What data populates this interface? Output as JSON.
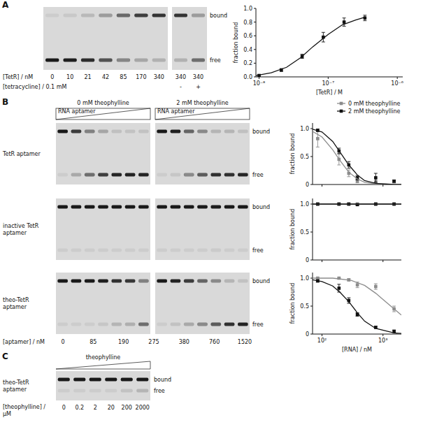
{
  "panels": {
    "letters": [
      "A",
      "B",
      "C"
    ]
  },
  "gels": {
    "A": {
      "bound_label": "bound",
      "free_label": "free",
      "lanes_label": "[TetR] / nM",
      "lanes": [
        "0",
        "10",
        "21",
        "42",
        "85",
        "170",
        "340",
        "340",
        "340"
      ],
      "tetracycline_label": "[tetracycline] / 0.1 mM",
      "tetracycline": [
        "-",
        "+"
      ]
    },
    "B": {
      "conditions": [
        "0 mM theophylline",
        "2 mM theophylline"
      ],
      "titrant": "RNA aptamer",
      "rows": [
        "TetR aptamer",
        "inactive TetR aptamer",
        "theo-TetR aptamer"
      ],
      "bound_label": "bound",
      "free_label": "free",
      "lanes_label": "[aptamer] / nM",
      "lanes": [
        "0",
        "85",
        "190",
        "275",
        "380",
        "760",
        "1520"
      ]
    },
    "C": {
      "titrant": "theophylline",
      "row": "theo-TetR aptamer",
      "bound_label": "bound",
      "free_label": "free",
      "lanes_label": "[theophylline] / μM",
      "lanes": [
        "0",
        "0.2",
        "2",
        "20",
        "200",
        "2000"
      ]
    }
  },
  "chart_data": [
    {
      "type": "scatter",
      "x_label": "[TetR] / M",
      "y_label": "fraction bound",
      "log": "x",
      "xlim": [
        9e-09,
        1.2e-06
      ],
      "ylim": [
        0,
        1
      ],
      "xticks": [
        {
          "value": 1e-08,
          "label": "10⁻⁸"
        },
        {
          "value": 1e-07,
          "label": "10⁻⁷"
        },
        {
          "value": 1e-06,
          "label": "10⁻⁶"
        }
      ],
      "yticks": [
        {
          "value": 0,
          "label": "0.0"
        },
        0.2,
        0.4,
        0.6,
        0.8,
        {
          "value": 1,
          "label": "1.0"
        }
      ],
      "series": [
        {
          "type": "scatter",
          "marker": "square",
          "color": "#111111",
          "x": [
            1e-08,
            2.1e-08,
            4.2e-08,
            8.5e-08,
            1.7e-07,
            3.4e-07
          ],
          "values": [
            0.02,
            0.1,
            0.3,
            0.58,
            0.8,
            0.86
          ],
          "errors": [
            0.01,
            0.02,
            0.03,
            0.07,
            0.06,
            0.04
          ]
        },
        {
          "type": "line",
          "line_style": "solid",
          "color": "#111111",
          "x": [
            9e-09,
            1.5e-08,
            2.5e-08,
            4e-08,
            6e-08,
            1e-07,
            1.6e-07,
            2.5e-07,
            3.4e-07
          ],
          "values": [
            0.02,
            0.06,
            0.14,
            0.28,
            0.44,
            0.62,
            0.76,
            0.83,
            0.87
          ]
        }
      ]
    },
    {
      "type": "scatter",
      "y_label": "fraction bound",
      "log": "x",
      "xlim": [
        70,
        2000
      ],
      "ylim": [
        0,
        1.1
      ],
      "tick_labels": "y",
      "legend": "top-right",
      "xticks": [
        {
          "value": 100,
          "label": "10²"
        },
        {
          "value": 1000,
          "label": "10³"
        }
      ],
      "yticks": [
        0,
        0.5,
        {
          "value": 1,
          "label": "1.0"
        }
      ],
      "series": [
        {
          "name": "0 mM theophylline",
          "type": "scatter",
          "marker": "square",
          "color": "#8c8c8c",
          "x": [
            85,
            190,
            275,
            380,
            760,
            1520
          ],
          "values": [
            0.82,
            0.45,
            0.2,
            0.06,
            0.05,
            0.05
          ],
          "errors": [
            0.15,
            0.1,
            0.06,
            0.03,
            0.02,
            0.02
          ]
        },
        {
          "name": "2 mM theophylline",
          "type": "scatter",
          "marker": "square",
          "color": "#111111",
          "x": [
            85,
            190,
            275,
            380,
            760,
            1520
          ],
          "values": [
            0.97,
            0.6,
            0.35,
            0.12,
            0.12,
            0.06
          ],
          "errors": [
            0.02,
            0.05,
            0.06,
            0.04,
            0.08,
            0.02
          ]
        },
        {
          "type": "line",
          "line_style": "solid",
          "color": "#8c8c8c",
          "x": [
            70,
            100,
            150,
            200,
            275,
            380,
            500,
            760,
            1520,
            2000
          ],
          "values": [
            0.95,
            0.85,
            0.62,
            0.42,
            0.22,
            0.1,
            0.04,
            0.01,
            0,
            0
          ]
        },
        {
          "type": "line",
          "line_style": "solid",
          "color": "#111111",
          "x": [
            70,
            100,
            150,
            200,
            275,
            380,
            500,
            760,
            1520,
            2000
          ],
          "values": [
            0.99,
            0.94,
            0.77,
            0.57,
            0.35,
            0.17,
            0.07,
            0.02,
            0,
            0
          ]
        }
      ]
    },
    {
      "type": "scatter",
      "y_label": "fraction bound",
      "log": "x",
      "xlim": [
        70,
        2000
      ],
      "ylim": [
        0,
        1.1
      ],
      "tick_labels": "y",
      "xticks": [
        {
          "value": 100,
          "label": "10²"
        },
        {
          "value": 1000,
          "label": "10³"
        }
      ],
      "yticks": [
        0,
        0.5,
        {
          "value": 1,
          "label": "1.0"
        }
      ],
      "series": [
        {
          "type": "scatter",
          "marker": "square",
          "color": "#8c8c8c",
          "x": [
            85,
            190,
            275,
            380,
            760,
            1520
          ],
          "values": [
            1,
            1,
            1,
            1,
            1,
            1
          ],
          "errors": [
            0.01,
            0.01,
            0.01,
            0.01,
            0.02,
            0.01
          ]
        },
        {
          "type": "scatter",
          "marker": "square",
          "color": "#111111",
          "x": [
            85,
            190,
            275,
            380,
            760,
            1520
          ],
          "values": [
            1,
            1,
            1,
            0.99,
            1,
            1
          ],
          "errors": [
            0.01,
            0.01,
            0.01,
            0.01,
            0.01,
            0.01
          ]
        },
        {
          "type": "line",
          "line_style": "solid",
          "color": "#8c8c8c",
          "x": [
            70,
            2000
          ],
          "values": [
            1,
            1
          ]
        },
        {
          "type": "line",
          "line_style": "solid",
          "color": "#111111",
          "x": [
            70,
            2000
          ],
          "values": [
            1,
            1
          ]
        }
      ]
    },
    {
      "type": "scatter",
      "x_label": "[RNA] / nM",
      "y_label": "fraction bound",
      "log": "x",
      "xlim": [
        70,
        2000
      ],
      "ylim": [
        0,
        1.1
      ],
      "xticks": [
        {
          "value": 100,
          "label": "10²"
        },
        {
          "value": 1000,
          "label": "10³"
        }
      ],
      "yticks": [
        0,
        0.5,
        {
          "value": 1,
          "label": "1.0"
        }
      ],
      "series": [
        {
          "type": "scatter",
          "marker": "square",
          "color": "#8c8c8c",
          "x": [
            85,
            190,
            275,
            380,
            760,
            1520
          ],
          "values": [
            1,
            1,
            0.97,
            0.88,
            0.85,
            0.45
          ],
          "errors": [
            0.01,
            0.01,
            0.02,
            0.05,
            0.05,
            0.05
          ]
        },
        {
          "type": "scatter",
          "marker": "square",
          "color": "#111111",
          "x": [
            85,
            190,
            275,
            380,
            760,
            1520
          ],
          "values": [
            0.95,
            0.82,
            0.6,
            0.35,
            0.12,
            0.05
          ],
          "errors": [
            0.02,
            0.07,
            0.05,
            0.03,
            0.02,
            0.02
          ]
        },
        {
          "type": "line",
          "line_style": "solid",
          "color": "#8c8c8c",
          "x": [
            70,
            150,
            300,
            500,
            760,
            1000,
            1520,
            2000
          ],
          "values": [
            1,
            1,
            0.96,
            0.87,
            0.73,
            0.62,
            0.45,
            0.34
          ]
        },
        {
          "type": "line",
          "line_style": "solid",
          "color": "#111111",
          "x": [
            70,
            100,
            150,
            200,
            275,
            380,
            500,
            760,
            1520,
            2000
          ],
          "values": [
            0.97,
            0.94,
            0.86,
            0.74,
            0.58,
            0.38,
            0.23,
            0.1,
            0.02,
            0.01
          ]
        }
      ]
    }
  ]
}
